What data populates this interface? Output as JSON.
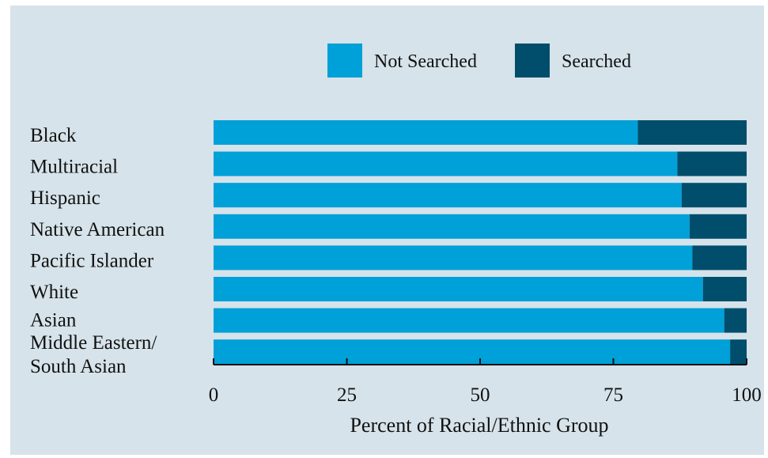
{
  "chart_data": {
    "type": "bar",
    "orientation": "horizontal",
    "stacked": true,
    "categories": [
      "Black",
      "Multiracial",
      "Hispanic",
      "Native American",
      "Pacific Islander",
      "White",
      "Asian",
      "Middle Eastern/ South Asian"
    ],
    "category_lines": [
      [
        "Black"
      ],
      [
        "Multiracial"
      ],
      [
        "Hispanic"
      ],
      [
        "Native American"
      ],
      [
        "Pacific Islander"
      ],
      [
        "White"
      ],
      [
        "Asian"
      ],
      [
        "Middle Eastern/",
        "South Asian"
      ]
    ],
    "series": [
      {
        "name": "Not Searched",
        "color": "#00a0d8",
        "values": [
          79.6,
          87.0,
          87.8,
          89.3,
          89.8,
          91.8,
          95.8,
          96.9
        ]
      },
      {
        "name": "Searched",
        "color": "#004e6b",
        "values": [
          20.4,
          13.0,
          12.2,
          10.7,
          10.2,
          8.2,
          4.2,
          3.1
        ]
      }
    ],
    "xlabel": "Percent of Racial/Ethnic Group",
    "ylabel": "",
    "xlim": [
      0,
      100
    ],
    "xticks": [
      "0",
      "25",
      "50",
      "75",
      "100"
    ],
    "legend_position": "top-center",
    "background": "#d6e3ea",
    "grid": false
  }
}
